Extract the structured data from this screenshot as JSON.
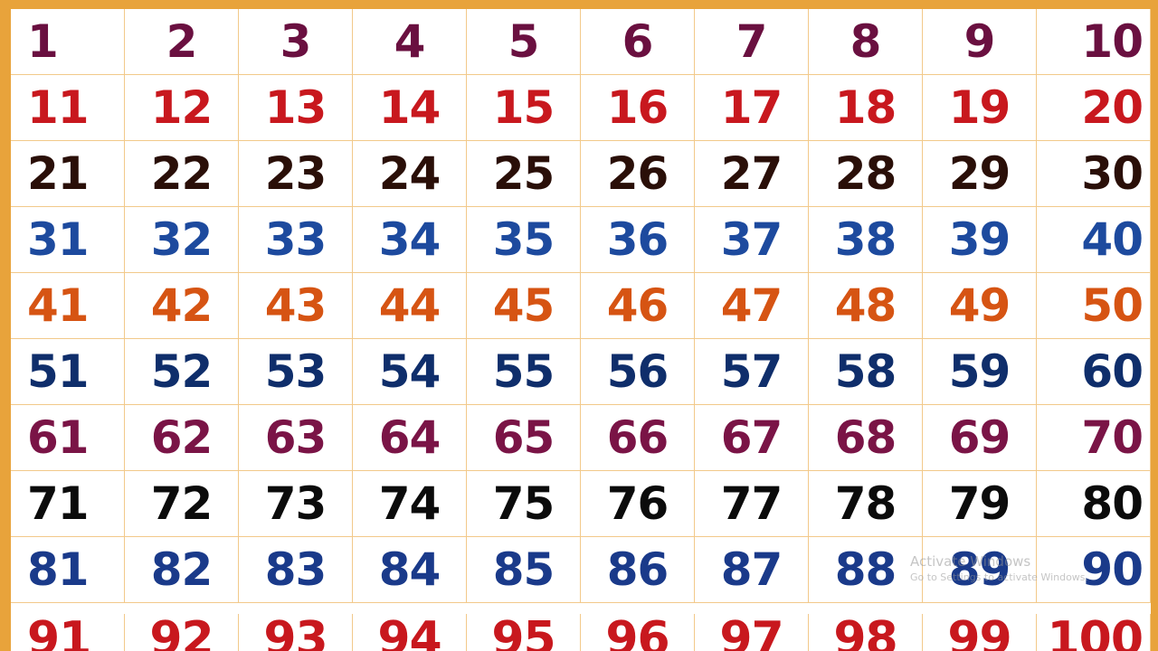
{
  "row_colors": [
    "#6a1040",
    "#c8181e",
    "#2a0f08",
    "#1d4a9e",
    "#d65413",
    "#0f2e6b",
    "#7a1446",
    "#0b0b0b",
    "#1a3a8a",
    "#c8181e"
  ],
  "frame_color": "#e8a33b",
  "numbers": [
    [
      "1",
      "2",
      "3",
      "4",
      "5",
      "6",
      "7",
      "8",
      "9",
      "10"
    ],
    [
      "11",
      "12",
      "13",
      "14",
      "15",
      "16",
      "17",
      "18",
      "19",
      "20"
    ],
    [
      "21",
      "22",
      "23",
      "24",
      "25",
      "26",
      "27",
      "28",
      "29",
      "30"
    ],
    [
      "31",
      "32",
      "33",
      "34",
      "35",
      "36",
      "37",
      "38",
      "39",
      "40"
    ],
    [
      "41",
      "42",
      "43",
      "44",
      "45",
      "46",
      "47",
      "48",
      "49",
      "50"
    ],
    [
      "51",
      "52",
      "53",
      "54",
      "55",
      "56",
      "57",
      "58",
      "59",
      "60"
    ],
    [
      "61",
      "62",
      "63",
      "64",
      "65",
      "66",
      "67",
      "68",
      "69",
      "70"
    ],
    [
      "71",
      "72",
      "73",
      "74",
      "75",
      "76",
      "77",
      "78",
      "79",
      "80"
    ],
    [
      "81",
      "82",
      "83",
      "84",
      "85",
      "86",
      "87",
      "88",
      "89",
      "90"
    ],
    [
      "91",
      "92",
      "93",
      "94",
      "95",
      "96",
      "97",
      "98",
      "99",
      "100"
    ]
  ],
  "watermark": {
    "title": "Activate Windows",
    "subtitle": "Go to Settings to activate Windows."
  }
}
